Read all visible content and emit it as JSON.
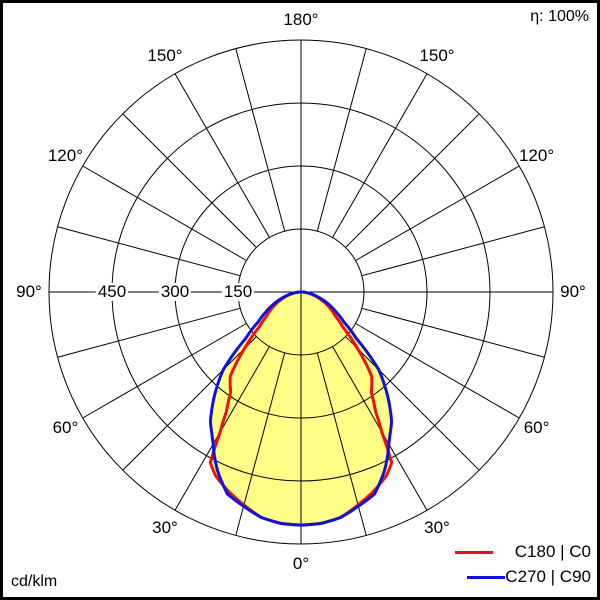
{
  "chart_data": {
    "type": "polar",
    "title": "",
    "efficiency_label": "η: 100%",
    "unit_label": "cd/klm",
    "radial_ticks": [
      150,
      300,
      450,
      600
    ],
    "radial_tick_labels": [
      "150",
      "300",
      "450"
    ],
    "rmax": 600,
    "angle_labels": [
      {
        "text": "180°",
        "angle": 180,
        "side": "center"
      },
      {
        "text": "150°",
        "angle": 150,
        "side": "left"
      },
      {
        "text": "150°",
        "angle": 150,
        "side": "right"
      },
      {
        "text": "120°",
        "angle": 120,
        "side": "left"
      },
      {
        "text": "120°",
        "angle": 120,
        "side": "right"
      },
      {
        "text": "90°",
        "angle": 90,
        "side": "left"
      },
      {
        "text": "90°",
        "angle": 90,
        "side": "right"
      },
      {
        "text": "60°",
        "angle": 60,
        "side": "left"
      },
      {
        "text": "60°",
        "angle": 60,
        "side": "right"
      },
      {
        "text": "30°",
        "angle": 30,
        "side": "left"
      },
      {
        "text": "30°",
        "angle": 30,
        "side": "right"
      },
      {
        "text": "0°",
        "angle": 0,
        "side": "center"
      }
    ],
    "gamma": [
      0,
      5,
      10,
      15,
      20,
      25,
      28,
      30,
      32,
      35,
      40,
      45,
      50,
      55,
      60,
      65,
      70,
      75,
      80,
      85,
      90
    ],
    "series": [
      {
        "name": "C180 | C0",
        "color": "#ee1111",
        "values": [
          555,
          553,
          545,
          525,
          505,
          482,
          460,
          385,
          335,
          292,
          262,
          190,
          130,
          100,
          82,
          65,
          48,
          33,
          20,
          8,
          0
        ]
      },
      {
        "name": "C270 | C90",
        "color": "#1111dd",
        "values": [
          555,
          553,
          545,
          528,
          512,
          470,
          440,
          418,
          400,
          376,
          320,
          262,
          172,
          125,
          98,
          76,
          56,
          38,
          24,
          10,
          0
        ]
      }
    ],
    "fill_color": "#ffff88"
  }
}
